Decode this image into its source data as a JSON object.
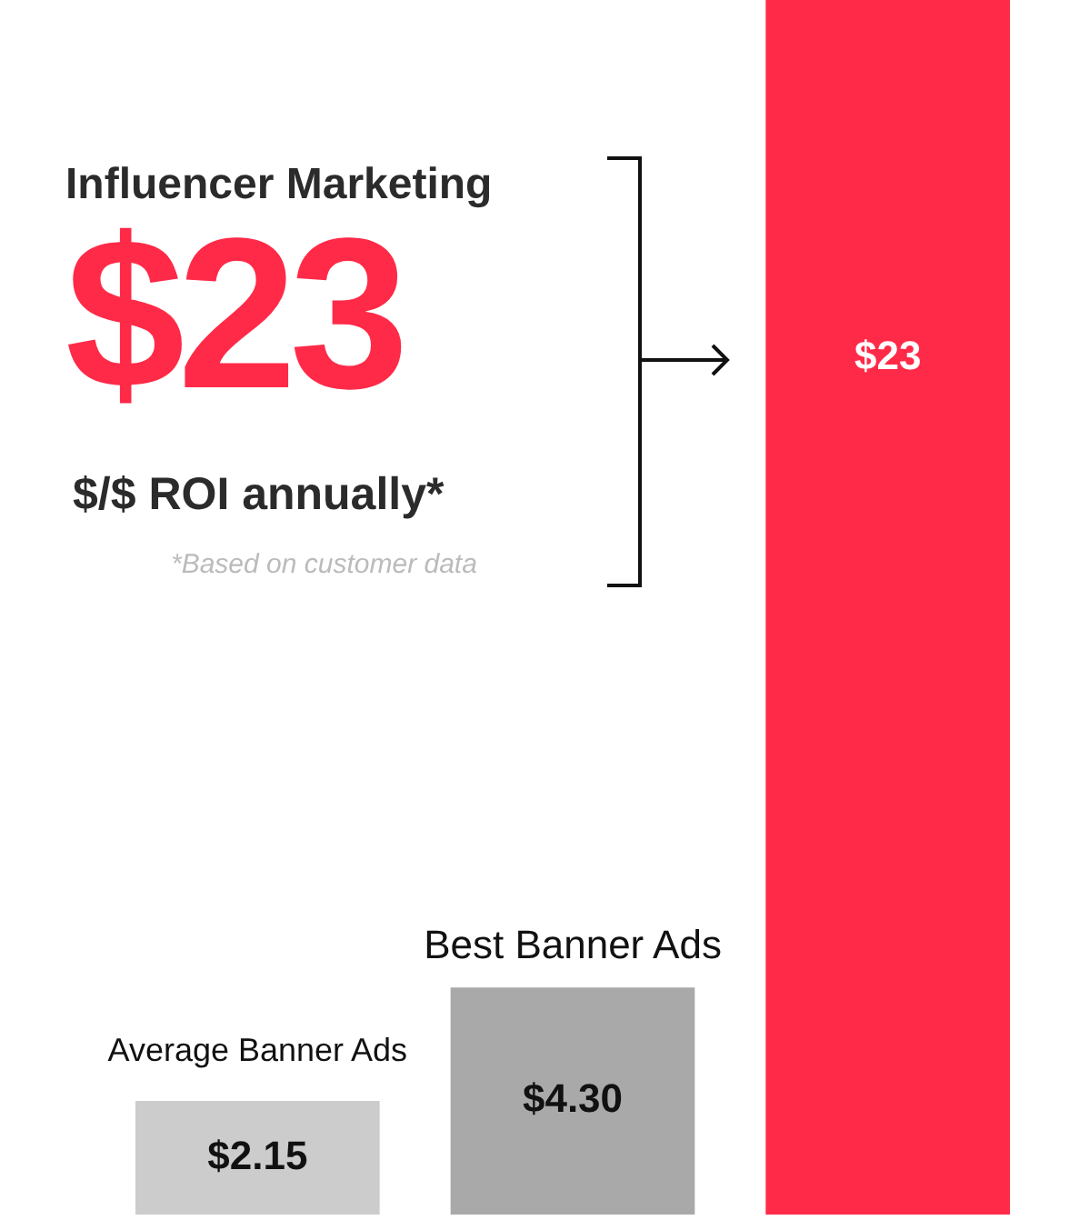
{
  "chart_data": {
    "type": "bar",
    "categories": [
      "Average Banner Ads",
      "Best Banner Ads",
      null
    ],
    "values": [
      2.15,
      4.3,
      23
    ],
    "colors": [
      "#cccccc",
      "#a9a9a9",
      "#ff2a48"
    ],
    "value_labels": [
      "$2.15",
      "$4.30",
      "$23"
    ],
    "ylim": [
      0,
      23
    ],
    "tick_labels": "x",
    "legend": false,
    "annotations": [
      "Influencer Marketing",
      "$23",
      "$/$ ROI annually*",
      "*Based on customer data"
    ]
  }
}
